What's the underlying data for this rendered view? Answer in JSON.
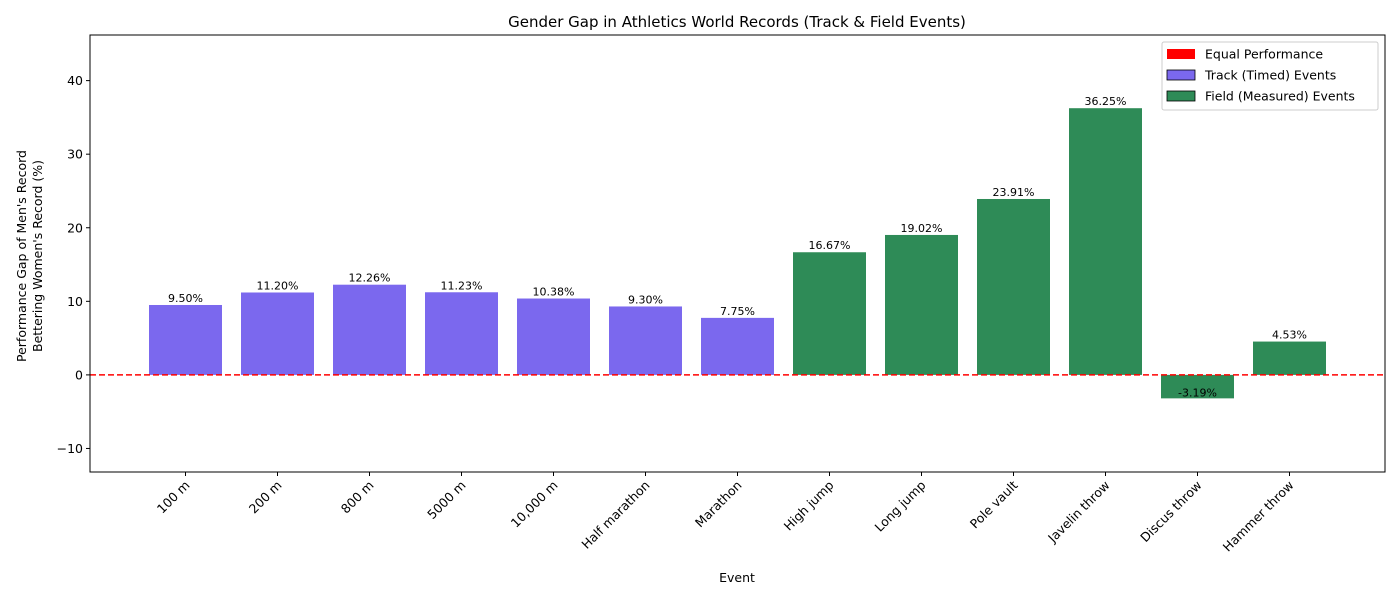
{
  "chart_data": {
    "type": "bar",
    "title": "Gender Gap in Athletics World Records (Track & Field Events)",
    "xlabel": "Event",
    "ylabel_lines": [
      "Performance Gap of Men's Record",
      "Bettering Women's Record (%)"
    ],
    "ylim": [
      -13.2,
      46.2
    ],
    "yticks": [
      -10,
      0,
      10,
      20,
      30,
      40
    ],
    "ytick_labels": [
      "−10",
      "0",
      "10",
      "20",
      "30",
      "40"
    ],
    "categories": [
      "100 m",
      "200 m",
      "800 m",
      "5000 m",
      "10,000 m",
      "Half marathon",
      "Marathon",
      "High jump",
      "Long jump",
      "Pole vault",
      "Javelin throw",
      "Discus throw",
      "Hammer throw"
    ],
    "values": [
      9.5,
      11.2,
      12.26,
      11.23,
      10.38,
      9.3,
      7.75,
      16.67,
      19.02,
      23.91,
      36.25,
      -3.19,
      4.53
    ],
    "value_labels": [
      "9.50%",
      "11.20%",
      "12.26%",
      "11.23%",
      "10.38%",
      "9.30%",
      "7.75%",
      "16.67%",
      "19.02%",
      "23.91%",
      "36.25%",
      "-3.19%",
      "4.53%"
    ],
    "groups": [
      "track",
      "track",
      "track",
      "track",
      "track",
      "track",
      "track",
      "field",
      "field",
      "field",
      "field",
      "field",
      "field"
    ],
    "group_colors": {
      "track": "#7b68ee",
      "field": "#2e8b57"
    },
    "reference_line": {
      "y": 0,
      "color": "#ff0000",
      "style": "dashed"
    },
    "grid": false,
    "legend": {
      "placement": "top-right",
      "entries": [
        {
          "label": "Equal Performance",
          "color": "#ff0000",
          "border": false
        },
        {
          "label": "Track (Timed) Events",
          "color": "#7b68ee",
          "border": true
        },
        {
          "label": "Field (Measured) Events",
          "color": "#2e8b57",
          "border": true
        }
      ]
    }
  }
}
